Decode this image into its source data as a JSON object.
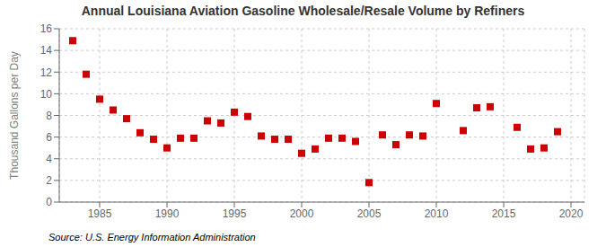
{
  "chart_data": {
    "type": "scatter",
    "title": "Annual Louisiana Aviation Gasoline Wholesale/Resale Volume by Refiners",
    "y_label": "Thousand Gallons per Day",
    "annotations": [
      "Source: U.S. Energy Information Administration"
    ],
    "x": [
      1983,
      1984,
      1985,
      1986,
      1987,
      1988,
      1989,
      1990,
      1991,
      1992,
      1993,
      1994,
      1995,
      1996,
      1997,
      1998,
      1999,
      2000,
      2001,
      2002,
      2003,
      2004,
      2005,
      2006,
      2007,
      2008,
      2009,
      2010,
      2012,
      2013,
      2014,
      2016,
      2017,
      2018,
      2019
    ],
    "values": [
      14.9,
      11.8,
      9.5,
      8.5,
      7.7,
      6.4,
      5.8,
      5.0,
      5.9,
      5.9,
      7.5,
      7.3,
      8.3,
      7.9,
      6.1,
      5.8,
      5.8,
      4.5,
      4.9,
      5.9,
      5.9,
      5.6,
      1.8,
      6.2,
      5.3,
      6.2,
      6.1,
      9.1,
      6.6,
      8.7,
      8.8,
      6.9,
      4.9,
      5.0,
      6.5
    ],
    "color": "#cc0000",
    "marker": "square",
    "xlim": [
      1982,
      2021
    ],
    "xticks": [
      1985,
      1990,
      1995,
      2000,
      2005,
      2010,
      2015,
      2020
    ],
    "ylim": [
      0,
      16
    ],
    "yticks": [
      0,
      2,
      4,
      6,
      8,
      10,
      12,
      14,
      16
    ],
    "grid": true
  }
}
